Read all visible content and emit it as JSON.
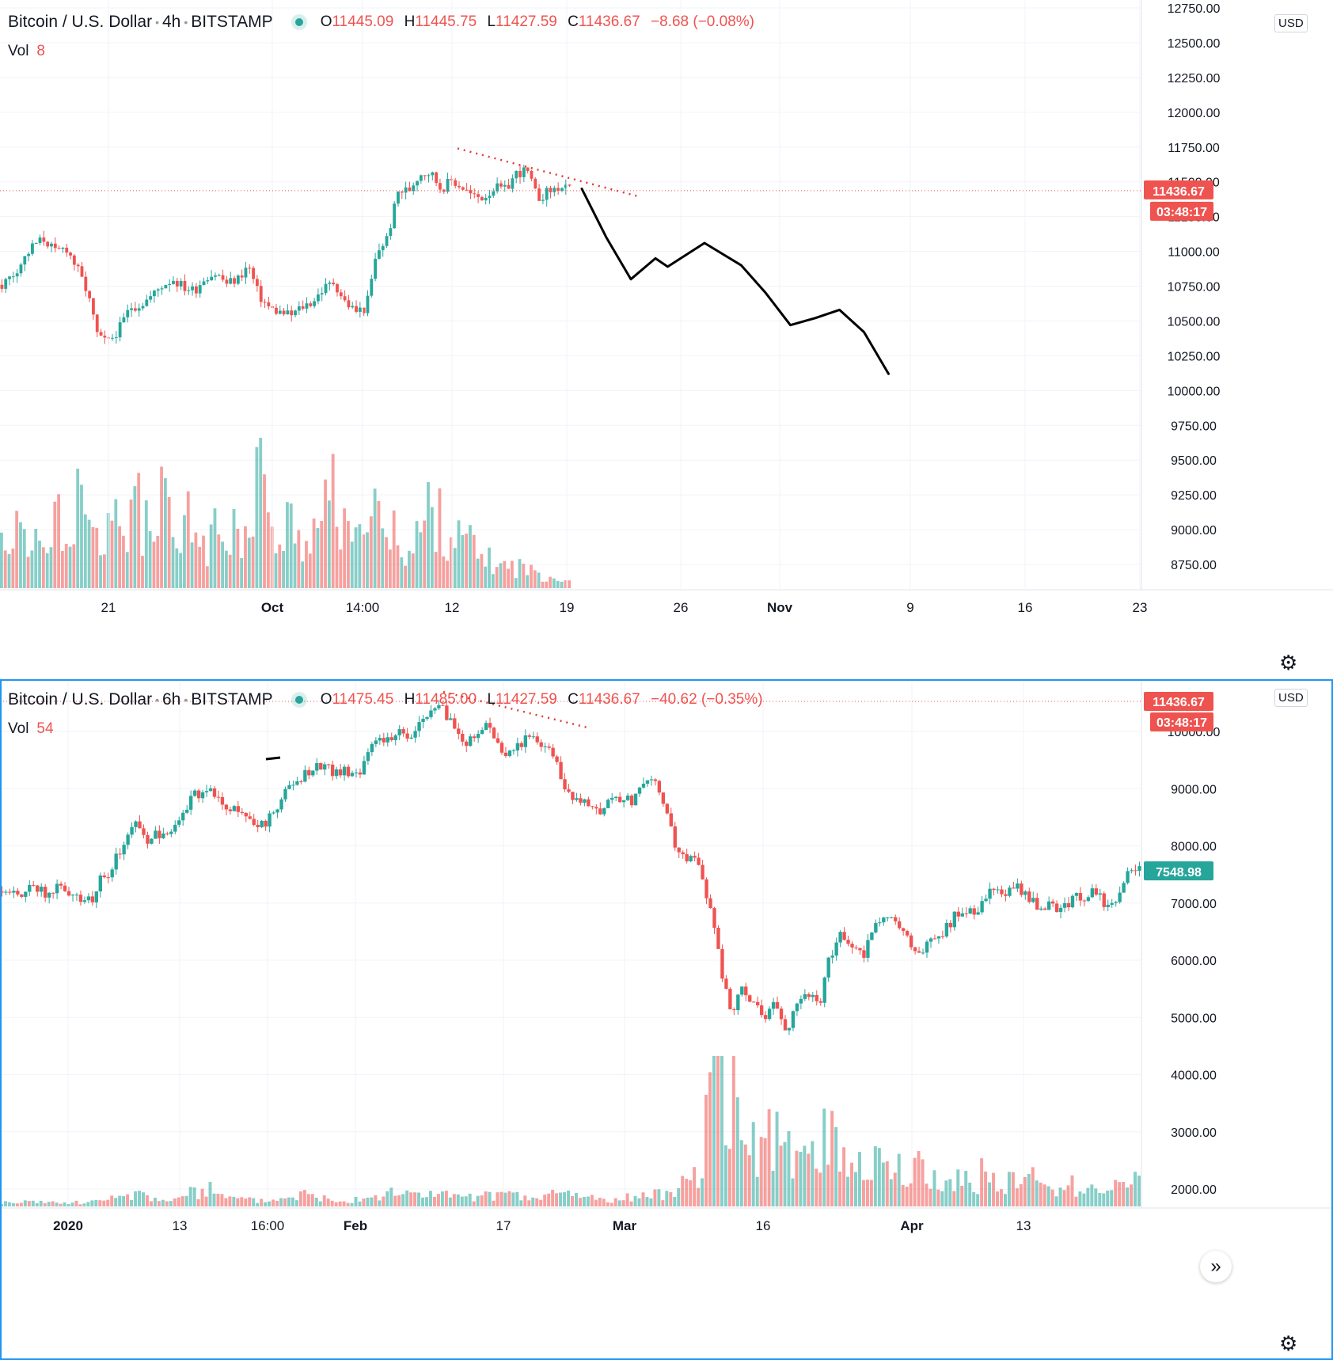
{
  "chart_data": [
    {
      "type": "candlestick",
      "symbol": "Bitcoin / U.S. Dollar",
      "interval": "4h",
      "exchange": "BITSTAMP",
      "ohlc": {
        "o_label": "O",
        "o": "11445.09",
        "h_label": "H",
        "h": "11445.75",
        "l_label": "L",
        "l": "11427.59",
        "c_label": "C",
        "c": "11436.67",
        "change": "−8.68 (−0.08%)"
      },
      "volume_label": "Vol",
      "volume_value": "8",
      "currency": "USD",
      "ylim": [
        8625,
        12750
      ],
      "y_ticks": [
        "12750.00",
        "12500.00",
        "12250.00",
        "12000.00",
        "11750.00",
        "11500.00",
        "11250.00",
        "11000.00",
        "10750.00",
        "10500.00",
        "10250.00",
        "10000.00",
        "9750.00",
        "9500.00",
        "9250.00",
        "9000.00",
        "8750.00"
      ],
      "x_ticks": [
        "21",
        "Oct",
        "14:00",
        "12",
        "19",
        "26",
        "Nov",
        "9",
        "16",
        "23"
      ],
      "last_price": "11436.67",
      "countdown": "03:48:17",
      "price_path": [
        10760,
        10830,
        10940,
        11050,
        11090,
        10990,
        11030,
        10880,
        10700,
        10370,
        10350,
        10450,
        10600,
        10620,
        10680,
        10760,
        10800,
        10740,
        10720,
        10820,
        10840,
        10770,
        10800,
        10900,
        10680,
        10590,
        10560,
        10540,
        10600,
        10640,
        10730,
        10780,
        10640,
        10570,
        10590,
        10990,
        11100,
        11430,
        11440,
        11560,
        11570,
        11450,
        11510,
        11460,
        11390,
        11390,
        11460,
        11440,
        11560,
        11580,
        11380,
        11430,
        11460,
        11440
      ],
      "projection": [
        [
          11450,
          0
        ],
        [
          11100,
          2
        ],
        [
          10800,
          4
        ],
        [
          10950,
          6
        ],
        [
          10890,
          7
        ],
        [
          11060,
          10
        ],
        [
          10900,
          13
        ],
        [
          10700,
          15
        ],
        [
          10470,
          17
        ],
        [
          10520,
          19
        ],
        [
          10580,
          21
        ],
        [
          10420,
          23
        ],
        [
          10120,
          25
        ]
      ],
      "trendline": [
        [
          11740,
          0
        ],
        [
          11430,
          1
        ]
      ],
      "volumes": [
        18,
        22,
        15,
        30,
        14,
        26,
        12,
        35,
        20,
        18,
        28,
        16,
        40,
        22,
        18,
        30,
        14,
        25,
        20,
        16,
        22,
        26,
        18,
        30,
        48,
        20,
        16,
        24,
        18,
        22,
        28,
        35,
        20,
        16,
        40,
        26,
        18,
        20,
        14,
        22,
        30,
        25,
        20,
        18,
        16,
        12,
        10,
        8,
        8,
        8,
        6,
        5,
        4,
        3
      ]
    },
    {
      "type": "candlestick",
      "symbol": "Bitcoin / U.S. Dollar",
      "interval": "6h",
      "exchange": "BITSTAMP",
      "ohlc": {
        "o_label": "O",
        "o": "11475.45",
        "h_label": "H",
        "h": "11485.00",
        "l_label": "L",
        "l": "11427.59",
        "c_label": "C",
        "c": "11436.67",
        "change": "−40.62 (−0.35%)"
      },
      "volume_label": "Vol",
      "volume_value": "54",
      "currency": "USD",
      "ylim": [
        1650,
        11050
      ],
      "y_ticks": [
        "10000.00",
        "9000.00",
        "8000.00",
        "7000.00",
        "6000.00",
        "5000.00",
        "4000.00",
        "3000.00",
        "2000.00"
      ],
      "x_ticks": [
        "2020",
        "13",
        "16:00",
        "Feb",
        "17",
        "Mar",
        "16",
        "Apr",
        "13"
      ],
      "last_price_hidden": "11436.67",
      "countdown": "03:48:17",
      "current_price": "7548.98",
      "price_path": [
        7200,
        7250,
        7180,
        7300,
        7150,
        7250,
        7200,
        7100,
        7000,
        7450,
        7600,
        8100,
        8400,
        8100,
        8200,
        8250,
        8500,
        8800,
        8950,
        9000,
        8650,
        8600,
        8550,
        8350,
        8400,
        8700,
        9000,
        9200,
        9350,
        9400,
        9300,
        9300,
        9150,
        9600,
        9800,
        9900,
        10000,
        9850,
        10200,
        10400,
        10350,
        10050,
        9800,
        9950,
        10200,
        9700,
        9650,
        9800,
        9900,
        9800,
        9600,
        9000,
        8800,
        8700,
        8600,
        8800,
        8850,
        8750,
        9100,
        9150,
        8700,
        8000,
        7800,
        7700,
        7000,
        6000,
        5000,
        5500,
        5300,
        4900,
        5400,
        4700,
        5300,
        5400,
        5200,
        6100,
        6500,
        6300,
        6000,
        6700,
        6800,
        6700,
        6400,
        6150,
        6300,
        6400,
        6700,
        6900,
        6850,
        7050,
        7300,
        7200,
        7250,
        7050,
        6900,
        7000,
        6850,
        7150,
        7100,
        7250,
        6950,
        7050,
        7500,
        7550
      ],
      "trendline": [
        [
          10500,
          0
        ],
        [
          10050,
          1
        ]
      ],
      "stray_mark": [
        9000,
        0
      ],
      "volumes": [
        6,
        5,
        7,
        6,
        8,
        5,
        6,
        7,
        8,
        10,
        12,
        18,
        22,
        14,
        12,
        10,
        16,
        20,
        28,
        30,
        14,
        12,
        10,
        9,
        10,
        12,
        18,
        20,
        16,
        14,
        12,
        10,
        14,
        16,
        18,
        20,
        22,
        18,
        20,
        24,
        18,
        16,
        14,
        12,
        18,
        20,
        16,
        14,
        12,
        16,
        20,
        22,
        18,
        14,
        12,
        10,
        12,
        14,
        16,
        18,
        20,
        30,
        40,
        60,
        180,
        200,
        190,
        140,
        90,
        120,
        100,
        80,
        70,
        95,
        110,
        100,
        85,
        80,
        70,
        75,
        65,
        55,
        50,
        60,
        45,
        40,
        35,
        45,
        40,
        50,
        42,
        38,
        40,
        45,
        35,
        30,
        28,
        32,
        30,
        28,
        34,
        30,
        40,
        42
      ]
    }
  ],
  "ui": {
    "gear_icon_top": "⚙",
    "gear_icon_bottom": "⚙",
    "scroll_icon": "»"
  }
}
